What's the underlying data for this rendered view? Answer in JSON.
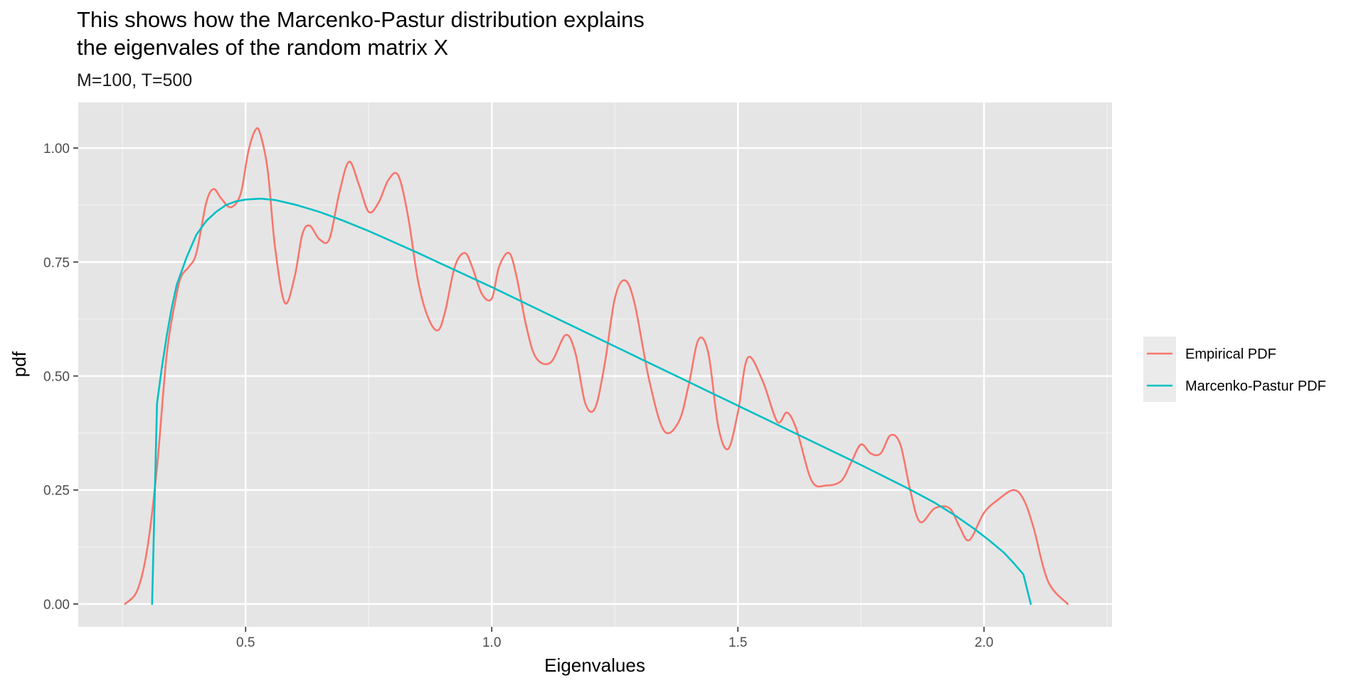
{
  "chart_data": {
    "type": "line",
    "title": [
      "This shows how the Marcenko-Pastur distribution explains",
      "the eigenvales of the random matrix X"
    ],
    "subtitle": "M=100, T=500",
    "xlabel": "Eigenvalues",
    "ylabel": "pdf",
    "xlim": [
      0.16,
      2.26
    ],
    "ylim": [
      -0.05,
      1.1
    ],
    "x_ticks": [
      0.5,
      1.0,
      1.5,
      2.0
    ],
    "x_tick_labels": [
      "0.5",
      "1.0",
      "1.5",
      "2.0"
    ],
    "y_ticks": [
      0,
      0.25,
      0.5,
      0.75,
      1.0
    ],
    "y_tick_labels": [
      "0.00",
      "0.25",
      "0.50",
      "0.75",
      "1.00"
    ],
    "grid": true,
    "legend_position": "right",
    "series": [
      {
        "name": "Empirical PDF",
        "color": "#F8766D",
        "x": [
          0.255,
          0.28,
          0.3,
          0.32,
          0.34,
          0.36,
          0.37,
          0.385,
          0.4,
          0.42,
          0.435,
          0.45,
          0.47,
          0.49,
          0.505,
          0.52,
          0.53,
          0.545,
          0.56,
          0.58,
          0.6,
          0.615,
          0.63,
          0.65,
          0.67,
          0.69,
          0.71,
          0.73,
          0.75,
          0.77,
          0.79,
          0.81,
          0.83,
          0.85,
          0.87,
          0.89,
          0.905,
          0.925,
          0.945,
          0.96,
          0.98,
          1.0,
          1.015,
          1.035,
          1.05,
          1.07,
          1.09,
          1.12,
          1.15,
          1.17,
          1.19,
          1.21,
          1.23,
          1.25,
          1.27,
          1.29,
          1.32,
          1.35,
          1.38,
          1.4,
          1.42,
          1.44,
          1.46,
          1.48,
          1.5,
          1.52,
          1.55,
          1.58,
          1.6,
          1.62,
          1.65,
          1.68,
          1.71,
          1.73,
          1.75,
          1.77,
          1.79,
          1.81,
          1.83,
          1.85,
          1.87,
          1.9,
          1.93,
          1.95,
          1.97,
          2.0,
          2.03,
          2.06,
          2.08,
          2.1,
          2.13,
          2.17
        ],
        "y": [
          0.0,
          0.03,
          0.12,
          0.3,
          0.55,
          0.68,
          0.72,
          0.74,
          0.77,
          0.88,
          0.91,
          0.89,
          0.87,
          0.9,
          0.99,
          1.04,
          1.03,
          0.95,
          0.78,
          0.66,
          0.72,
          0.81,
          0.83,
          0.8,
          0.8,
          0.9,
          0.97,
          0.92,
          0.86,
          0.88,
          0.93,
          0.94,
          0.85,
          0.71,
          0.63,
          0.6,
          0.64,
          0.74,
          0.77,
          0.74,
          0.68,
          0.67,
          0.74,
          0.77,
          0.72,
          0.61,
          0.54,
          0.53,
          0.59,
          0.55,
          0.44,
          0.43,
          0.53,
          0.67,
          0.71,
          0.66,
          0.49,
          0.38,
          0.4,
          0.48,
          0.58,
          0.55,
          0.39,
          0.34,
          0.42,
          0.54,
          0.49,
          0.4,
          0.42,
          0.38,
          0.27,
          0.26,
          0.27,
          0.31,
          0.35,
          0.33,
          0.33,
          0.37,
          0.35,
          0.25,
          0.18,
          0.21,
          0.21,
          0.17,
          0.14,
          0.2,
          0.23,
          0.25,
          0.23,
          0.17,
          0.05,
          0.0
        ]
      },
      {
        "name": "Marcenko-Pastur PDF",
        "color": "#00BFC4",
        "x": [
          0.31,
          0.32,
          0.33,
          0.34,
          0.35,
          0.36,
          0.38,
          0.4,
          0.42,
          0.44,
          0.46,
          0.48,
          0.5,
          0.53,
          0.56,
          0.6,
          0.65,
          0.7,
          0.75,
          0.8,
          0.85,
          0.9,
          0.95,
          1.0,
          1.05,
          1.1,
          1.15,
          1.2,
          1.25,
          1.3,
          1.35,
          1.4,
          1.45,
          1.5,
          1.55,
          1.6,
          1.65,
          1.7,
          1.75,
          1.8,
          1.85,
          1.9,
          1.94,
          1.98,
          2.01,
          2.04,
          2.06,
          2.08,
          2.095
        ],
        "y": [
          0.0,
          0.44,
          0.52,
          0.59,
          0.65,
          0.7,
          0.76,
          0.81,
          0.84,
          0.86,
          0.875,
          0.883,
          0.887,
          0.889,
          0.886,
          0.876,
          0.86,
          0.84,
          0.818,
          0.794,
          0.77,
          0.745,
          0.72,
          0.695,
          0.669,
          0.643,
          0.617,
          0.591,
          0.565,
          0.539,
          0.513,
          0.487,
          0.461,
          0.435,
          0.409,
          0.383,
          0.357,
          0.331,
          0.305,
          0.278,
          0.251,
          0.222,
          0.195,
          0.165,
          0.14,
          0.113,
          0.09,
          0.065,
          0.0
        ]
      }
    ]
  }
}
